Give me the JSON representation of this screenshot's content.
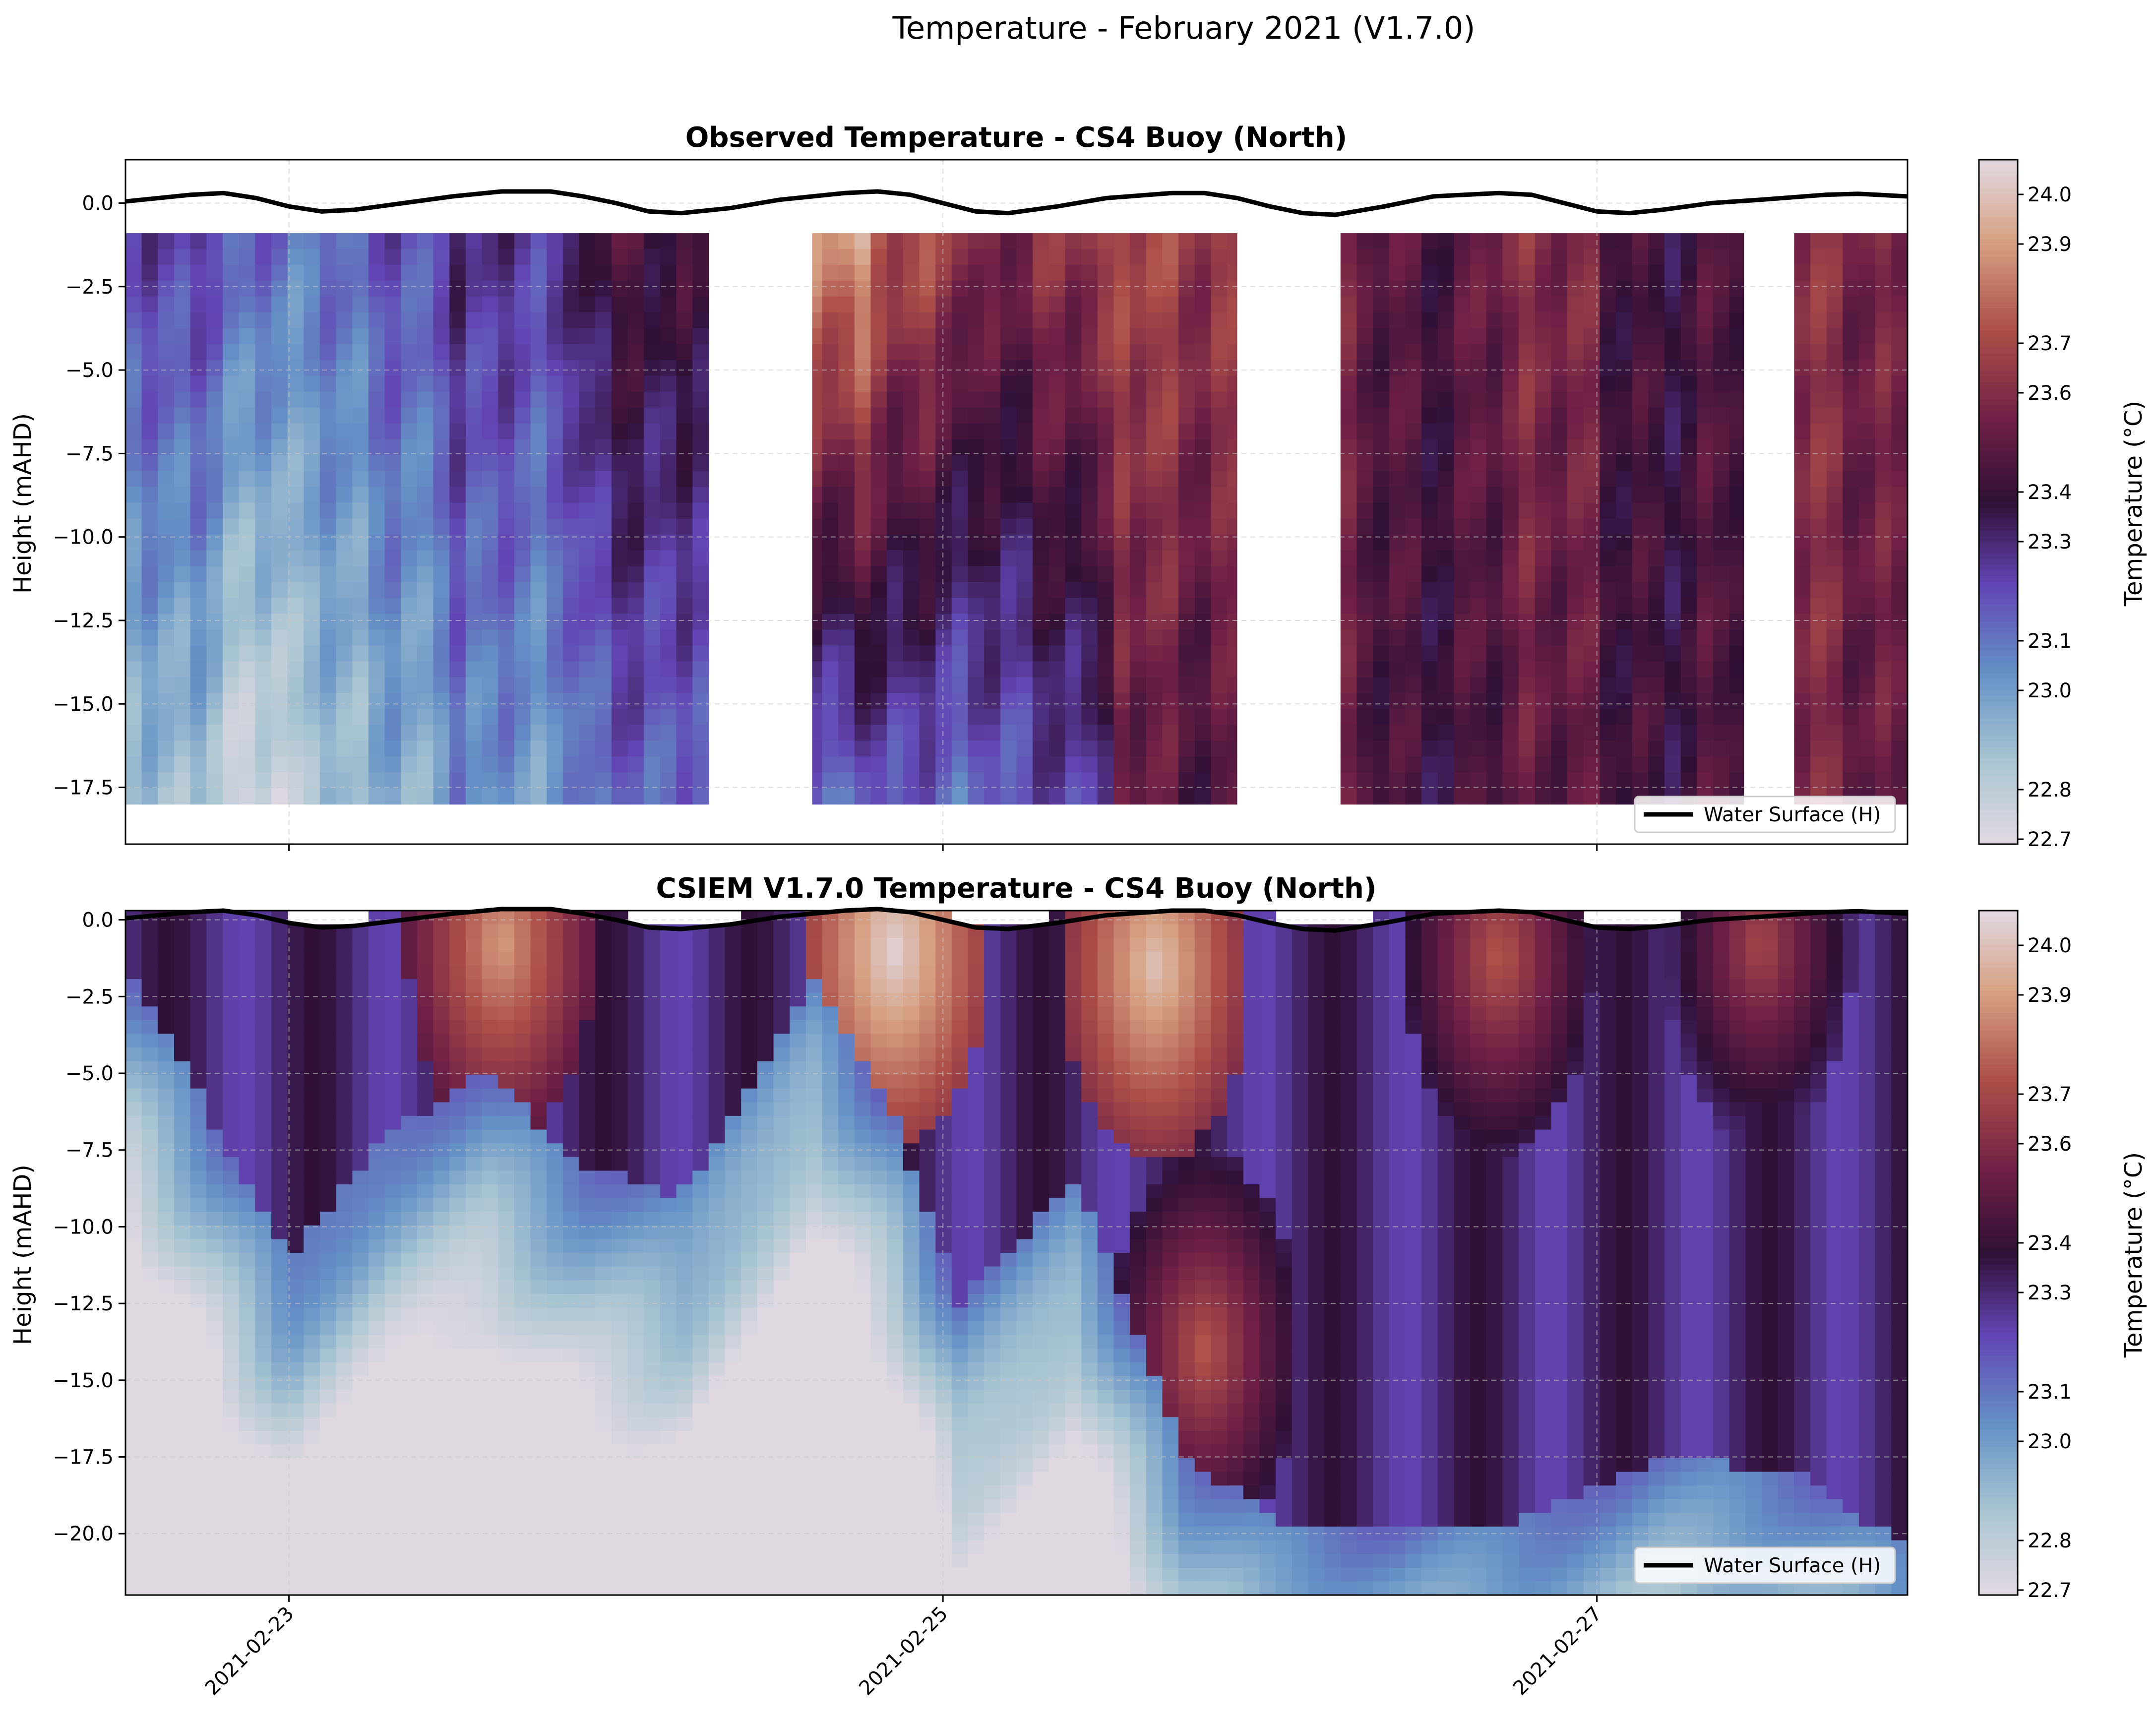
{
  "figure_title": "Temperature - February 2021 (V1.7.0)",
  "colors": {
    "colormap": "twilight",
    "surface_line": "#000000",
    "grid": "#c8c8c8",
    "background": "#ffffff"
  },
  "chart_data": [
    {
      "type": "heatmap",
      "title": "Observed Temperature - CS4 Buoy (North)",
      "xlabel": "",
      "ylabel": "Height (mAHD)",
      "xlim": [
        -0.5,
        4.95
      ],
      "ylim": [
        -19.2,
        1.3
      ],
      "x_ticks": [
        0,
        2,
        4
      ],
      "x_ticklabels": [
        "2021-02-23",
        "2021-02-25",
        "2021-02-27"
      ],
      "show_x_ticklabels": false,
      "y_ticks": [
        0.0,
        -2.5,
        -5.0,
        -7.5,
        -10.0,
        -12.5,
        -15.0,
        -17.5
      ],
      "y_ticklabels": [
        "0.0",
        "−2.5",
        "−5.0",
        "−7.5",
        "−10.0",
        "−12.5",
        "−15.0",
        "−17.5"
      ],
      "x_unit": "days since 2021-02-23",
      "colorbar": {
        "label": "Temperature (°C)",
        "vmin": 22.69,
        "vmax": 24.07,
        "ticks": [
          22.7,
          22.8,
          23.0,
          23.1,
          23.3,
          23.4,
          23.6,
          23.7,
          23.9,
          24.0
        ],
        "ticklabels": [
          "22.7",
          "22.8",
          "23.0",
          "23.1",
          "23.3",
          "23.4",
          "23.6",
          "23.7",
          "23.9",
          "24.0"
        ]
      },
      "legend": {
        "label": "Water Surface (H)",
        "location": "lower right"
      },
      "water_surface": {
        "x": [
          -0.5,
          -0.3,
          -0.2,
          -0.1,
          0.0,
          0.1,
          0.2,
          0.35,
          0.5,
          0.65,
          0.8,
          0.9,
          1.0,
          1.1,
          1.2,
          1.35,
          1.5,
          1.7,
          1.8,
          1.9,
          2.0,
          2.1,
          2.2,
          2.35,
          2.5,
          2.7,
          2.8,
          2.9,
          3.0,
          3.1,
          3.2,
          3.35,
          3.5,
          3.7,
          3.8,
          3.9,
          4.0,
          4.1,
          4.2,
          4.35,
          4.5,
          4.7,
          4.8,
          4.95
        ],
        "y": [
          0.05,
          0.25,
          0.3,
          0.15,
          -0.1,
          -0.25,
          -0.2,
          0.0,
          0.2,
          0.35,
          0.35,
          0.2,
          0.0,
          -0.25,
          -0.3,
          -0.15,
          0.1,
          0.3,
          0.35,
          0.25,
          0.0,
          -0.25,
          -0.3,
          -0.1,
          0.15,
          0.3,
          0.3,
          0.15,
          -0.1,
          -0.3,
          -0.35,
          -0.1,
          0.2,
          0.3,
          0.25,
          0.0,
          -0.25,
          -0.3,
          -0.2,
          0.0,
          0.1,
          0.25,
          0.28,
          0.2
        ]
      },
      "gaps": [
        [
          1.3,
          1.6
        ],
        [
          2.9,
          3.2
        ],
        [
          4.45,
          4.58
        ]
      ],
      "profile": {
        "top": -0.9,
        "bottom": -18.0,
        "segments": [
          {
            "x0": -0.5,
            "x1": -0.25,
            "v_top": 23.2,
            "v_bottom": 22.85
          },
          {
            "x0": -0.25,
            "x1": 0.0,
            "v_top": 23.15,
            "v_bottom": 22.75
          },
          {
            "x0": 0.0,
            "x1": 0.5,
            "v_top": 23.15,
            "v_bottom": 22.9
          },
          {
            "x0": 0.5,
            "x1": 0.9,
            "v_top": 23.3,
            "v_bottom": 23.05
          },
          {
            "x0": 0.9,
            "x1": 1.3,
            "v_top": 23.4,
            "v_bottom": 23.1
          },
          {
            "x0": 1.6,
            "x1": 1.8,
            "v_top": 23.85,
            "v_bottom": 23.1
          },
          {
            "x0": 1.8,
            "x1": 2.1,
            "v_top": 23.7,
            "v_bottom": 23.15
          },
          {
            "x0": 2.1,
            "x1": 2.5,
            "v_top": 23.6,
            "v_bottom": 23.2
          },
          {
            "x0": 2.5,
            "x1": 2.9,
            "v_top": 23.7,
            "v_bottom": 23.5
          },
          {
            "x0": 3.2,
            "x1": 3.6,
            "v_top": 23.5,
            "v_bottom": 23.45
          },
          {
            "x0": 3.6,
            "x1": 4.0,
            "v_top": 23.55,
            "v_bottom": 23.45
          },
          {
            "x0": 4.0,
            "x1": 4.45,
            "v_top": 23.45,
            "v_bottom": 23.45
          },
          {
            "x0": 4.58,
            "x1": 4.95,
            "v_top": 23.6,
            "v_bottom": 23.55
          }
        ]
      }
    },
    {
      "type": "heatmap",
      "title": "CSIEM V1.7.0 Temperature - CS4 Buoy (North)",
      "xlabel": "",
      "ylabel": "Height (mAHD)",
      "xlim": [
        -0.5,
        4.95
      ],
      "ylim": [
        -22.0,
        0.3
      ],
      "x_ticks": [
        0,
        2,
        4
      ],
      "x_ticklabels": [
        "2021-02-23",
        "2021-02-25",
        "2021-02-27"
      ],
      "show_x_ticklabels": true,
      "y_ticks": [
        0.0,
        -2.5,
        -5.0,
        -7.5,
        -10.0,
        -12.5,
        -15.0,
        -17.5,
        -20.0
      ],
      "y_ticklabels": [
        "0.0",
        "−2.5",
        "−5.0",
        "−7.5",
        "−10.0",
        "−12.5",
        "−15.0",
        "−17.5",
        "−20.0"
      ],
      "x_unit": "days since 2021-02-23",
      "colorbar": {
        "label": "Temperature (°C)",
        "vmin": 22.69,
        "vmax": 24.07,
        "ticks": [
          22.7,
          22.8,
          23.0,
          23.1,
          23.3,
          23.4,
          23.6,
          23.7,
          23.9,
          24.0
        ],
        "ticklabels": [
          "22.7",
          "22.8",
          "23.0",
          "23.1",
          "23.3",
          "23.4",
          "23.6",
          "23.7",
          "23.9",
          "24.0"
        ]
      },
      "legend": {
        "label": "Water Surface (H)",
        "location": "lower right"
      },
      "water_surface": {
        "x": [
          -0.5,
          -0.3,
          -0.2,
          -0.1,
          0.0,
          0.1,
          0.2,
          0.35,
          0.5,
          0.65,
          0.8,
          0.9,
          1.0,
          1.1,
          1.2,
          1.35,
          1.5,
          1.7,
          1.8,
          1.9,
          2.0,
          2.1,
          2.2,
          2.35,
          2.5,
          2.7,
          2.8,
          2.9,
          3.0,
          3.1,
          3.2,
          3.35,
          3.5,
          3.7,
          3.8,
          3.9,
          4.0,
          4.1,
          4.2,
          4.35,
          4.5,
          4.7,
          4.8,
          4.95
        ],
        "y": [
          0.05,
          0.25,
          0.3,
          0.15,
          -0.1,
          -0.25,
          -0.2,
          0.0,
          0.2,
          0.35,
          0.35,
          0.2,
          0.0,
          -0.25,
          -0.3,
          -0.15,
          0.1,
          0.3,
          0.35,
          0.25,
          0.0,
          -0.25,
          -0.3,
          -0.1,
          0.15,
          0.3,
          0.3,
          0.15,
          -0.1,
          -0.3,
          -0.35,
          -0.1,
          0.2,
          0.3,
          0.25,
          0.0,
          -0.25,
          -0.3,
          -0.2,
          0.0,
          0.1,
          0.25,
          0.28,
          0.2
        ]
      },
      "cold_layer": [
        {
          "x": -0.5,
          "depth": -1.4
        },
        {
          "x": 0.0,
          "depth": -11.0
        },
        {
          "x": 0.3,
          "depth": -7.0
        },
        {
          "x": 0.6,
          "depth": -5.0
        },
        {
          "x": 0.9,
          "depth": -8.0
        },
        {
          "x": 1.2,
          "depth": -9.0
        },
        {
          "x": 1.6,
          "depth": -2.0
        },
        {
          "x": 1.85,
          "depth": -6.5
        },
        {
          "x": 2.05,
          "depth": -12.5
        },
        {
          "x": 2.4,
          "depth": -8.5
        },
        {
          "x": 2.75,
          "depth": -17.5
        },
        {
          "x": 3.0,
          "depth": -19.5
        },
        {
          "x": 3.4,
          "depth": -20.0
        },
        {
          "x": 3.8,
          "depth": -19.5
        },
        {
          "x": 4.2,
          "depth": -17.5
        },
        {
          "x": 4.6,
          "depth": -18.0
        },
        {
          "x": 4.95,
          "depth": -20.5
        }
      ],
      "warm_cores": [
        {
          "x": 0.65,
          "depth": -0.8,
          "value": 23.9
        },
        {
          "x": 1.85,
          "depth": -1.0,
          "value": 24.05
        },
        {
          "x": 2.65,
          "depth": -1.5,
          "value": 24.0
        },
        {
          "x": 2.8,
          "depth": -14.0,
          "value": 23.75
        },
        {
          "x": 3.7,
          "depth": -1.2,
          "value": 23.75
        },
        {
          "x": 4.5,
          "depth": -0.8,
          "value": 23.7
        }
      ]
    }
  ]
}
